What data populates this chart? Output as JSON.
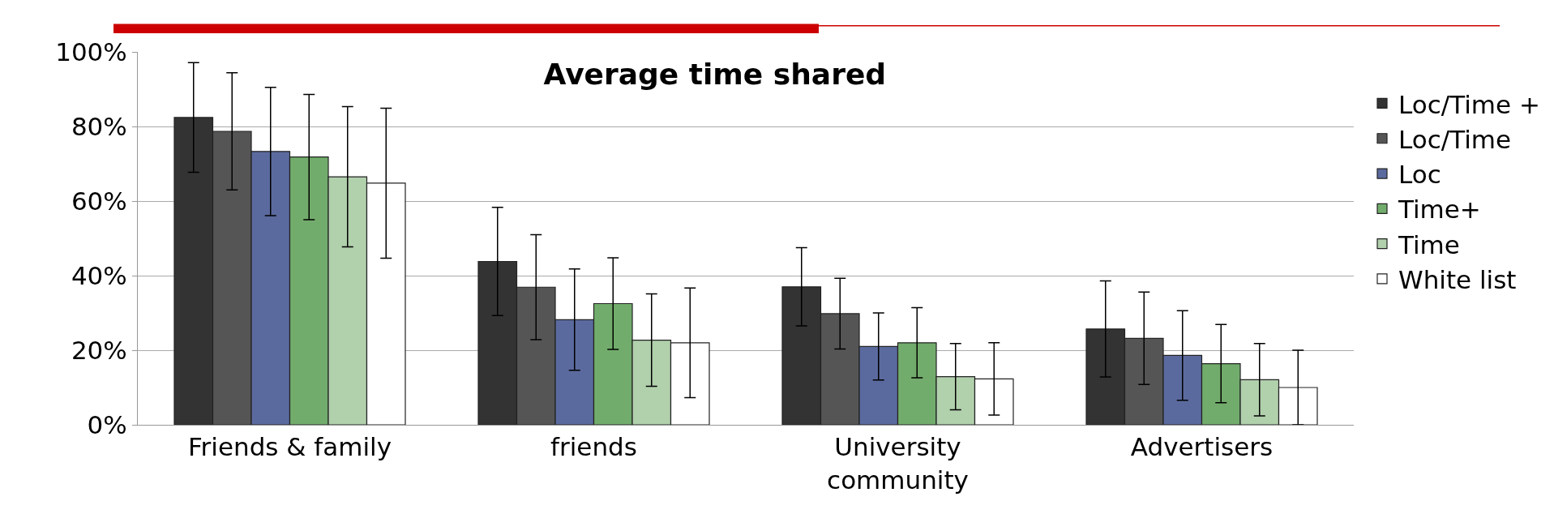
{
  "chart_data": {
    "type": "bar",
    "title": "Average time shared",
    "categories": [
      "Friends & family",
      "friends",
      "University community",
      "Advertisers"
    ],
    "series": [
      {
        "name": "Loc/Time +",
        "color": "#333333",
        "values": [
          82.4,
          43.8,
          37.0,
          25.7
        ],
        "errors": [
          14.7,
          14.5,
          10.5,
          12.9
        ]
      },
      {
        "name": "Loc/Time",
        "color": "#555555",
        "values": [
          78.7,
          36.9,
          29.8,
          23.2
        ],
        "errors": [
          15.7,
          14.1,
          9.5,
          12.4
        ]
      },
      {
        "name": "Loc",
        "color": "#5b6a9e",
        "values": [
          73.3,
          28.2,
          21.0,
          18.6
        ],
        "errors": [
          17.2,
          13.6,
          9.0,
          12.0
        ]
      },
      {
        "name": "Time+",
        "color": "#72ac6c",
        "values": [
          71.8,
          32.5,
          22.0,
          16.4
        ],
        "errors": [
          16.8,
          12.3,
          9.4,
          10.5
        ]
      },
      {
        "name": "Time",
        "color": "#b1d0ac",
        "values": [
          66.5,
          22.7,
          12.9,
          12.1
        ],
        "errors": [
          18.8,
          12.4,
          8.9,
          9.7
        ]
      },
      {
        "name": "White list",
        "color": "#ffffff",
        "values": [
          64.8,
          22.0,
          12.3,
          10.0
        ],
        "errors": [
          20.1,
          14.7,
          9.7,
          10.0
        ]
      }
    ],
    "ylim": [
      0,
      100
    ],
    "yticks": [
      {
        "value": 0,
        "label": "0%"
      },
      {
        "value": 20,
        "label": "20%"
      },
      {
        "value": 40,
        "label": "40%"
      },
      {
        "value": 60,
        "label": "60%"
      },
      {
        "value": 80,
        "label": "80%"
      },
      {
        "value": 100,
        "label": "100%"
      }
    ],
    "grid": "y",
    "legend": "right"
  }
}
